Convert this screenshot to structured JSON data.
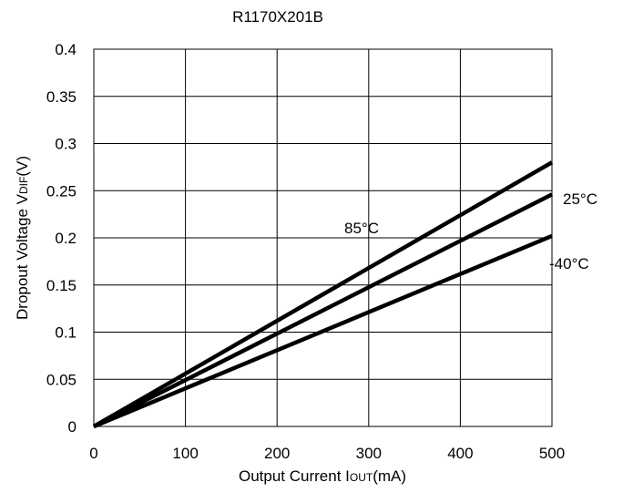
{
  "chart_data": {
    "type": "line",
    "title": "R1170X201B",
    "ylabel_main": "Dropout Voltage V",
    "ylabel_sub": "DIF",
    "ylabel_tail": "(V)",
    "xlabel_main": "Output Current I",
    "xlabel_sub": "OUT",
    "xlabel_tail": "(mA)",
    "xlim": [
      0,
      500
    ],
    "ylim": [
      0,
      0.4
    ],
    "xticks": [
      "0",
      "100",
      "200",
      "300",
      "400",
      "500"
    ],
    "yticks": [
      "0",
      "0.05",
      "0.1",
      "0.15",
      "0.2",
      "0.25",
      "0.3",
      "0.35",
      "0.4"
    ],
    "grid": true,
    "series": [
      {
        "name": "85°C",
        "x": [
          0,
          500
        ],
        "y": [
          0,
          0.28
        ]
      },
      {
        "name": "25°C",
        "x": [
          0,
          500
        ],
        "y": [
          0,
          0.246
        ]
      },
      {
        "name": "-40°C",
        "x": [
          0,
          500
        ],
        "y": [
          0,
          0.202
        ]
      }
    ]
  }
}
